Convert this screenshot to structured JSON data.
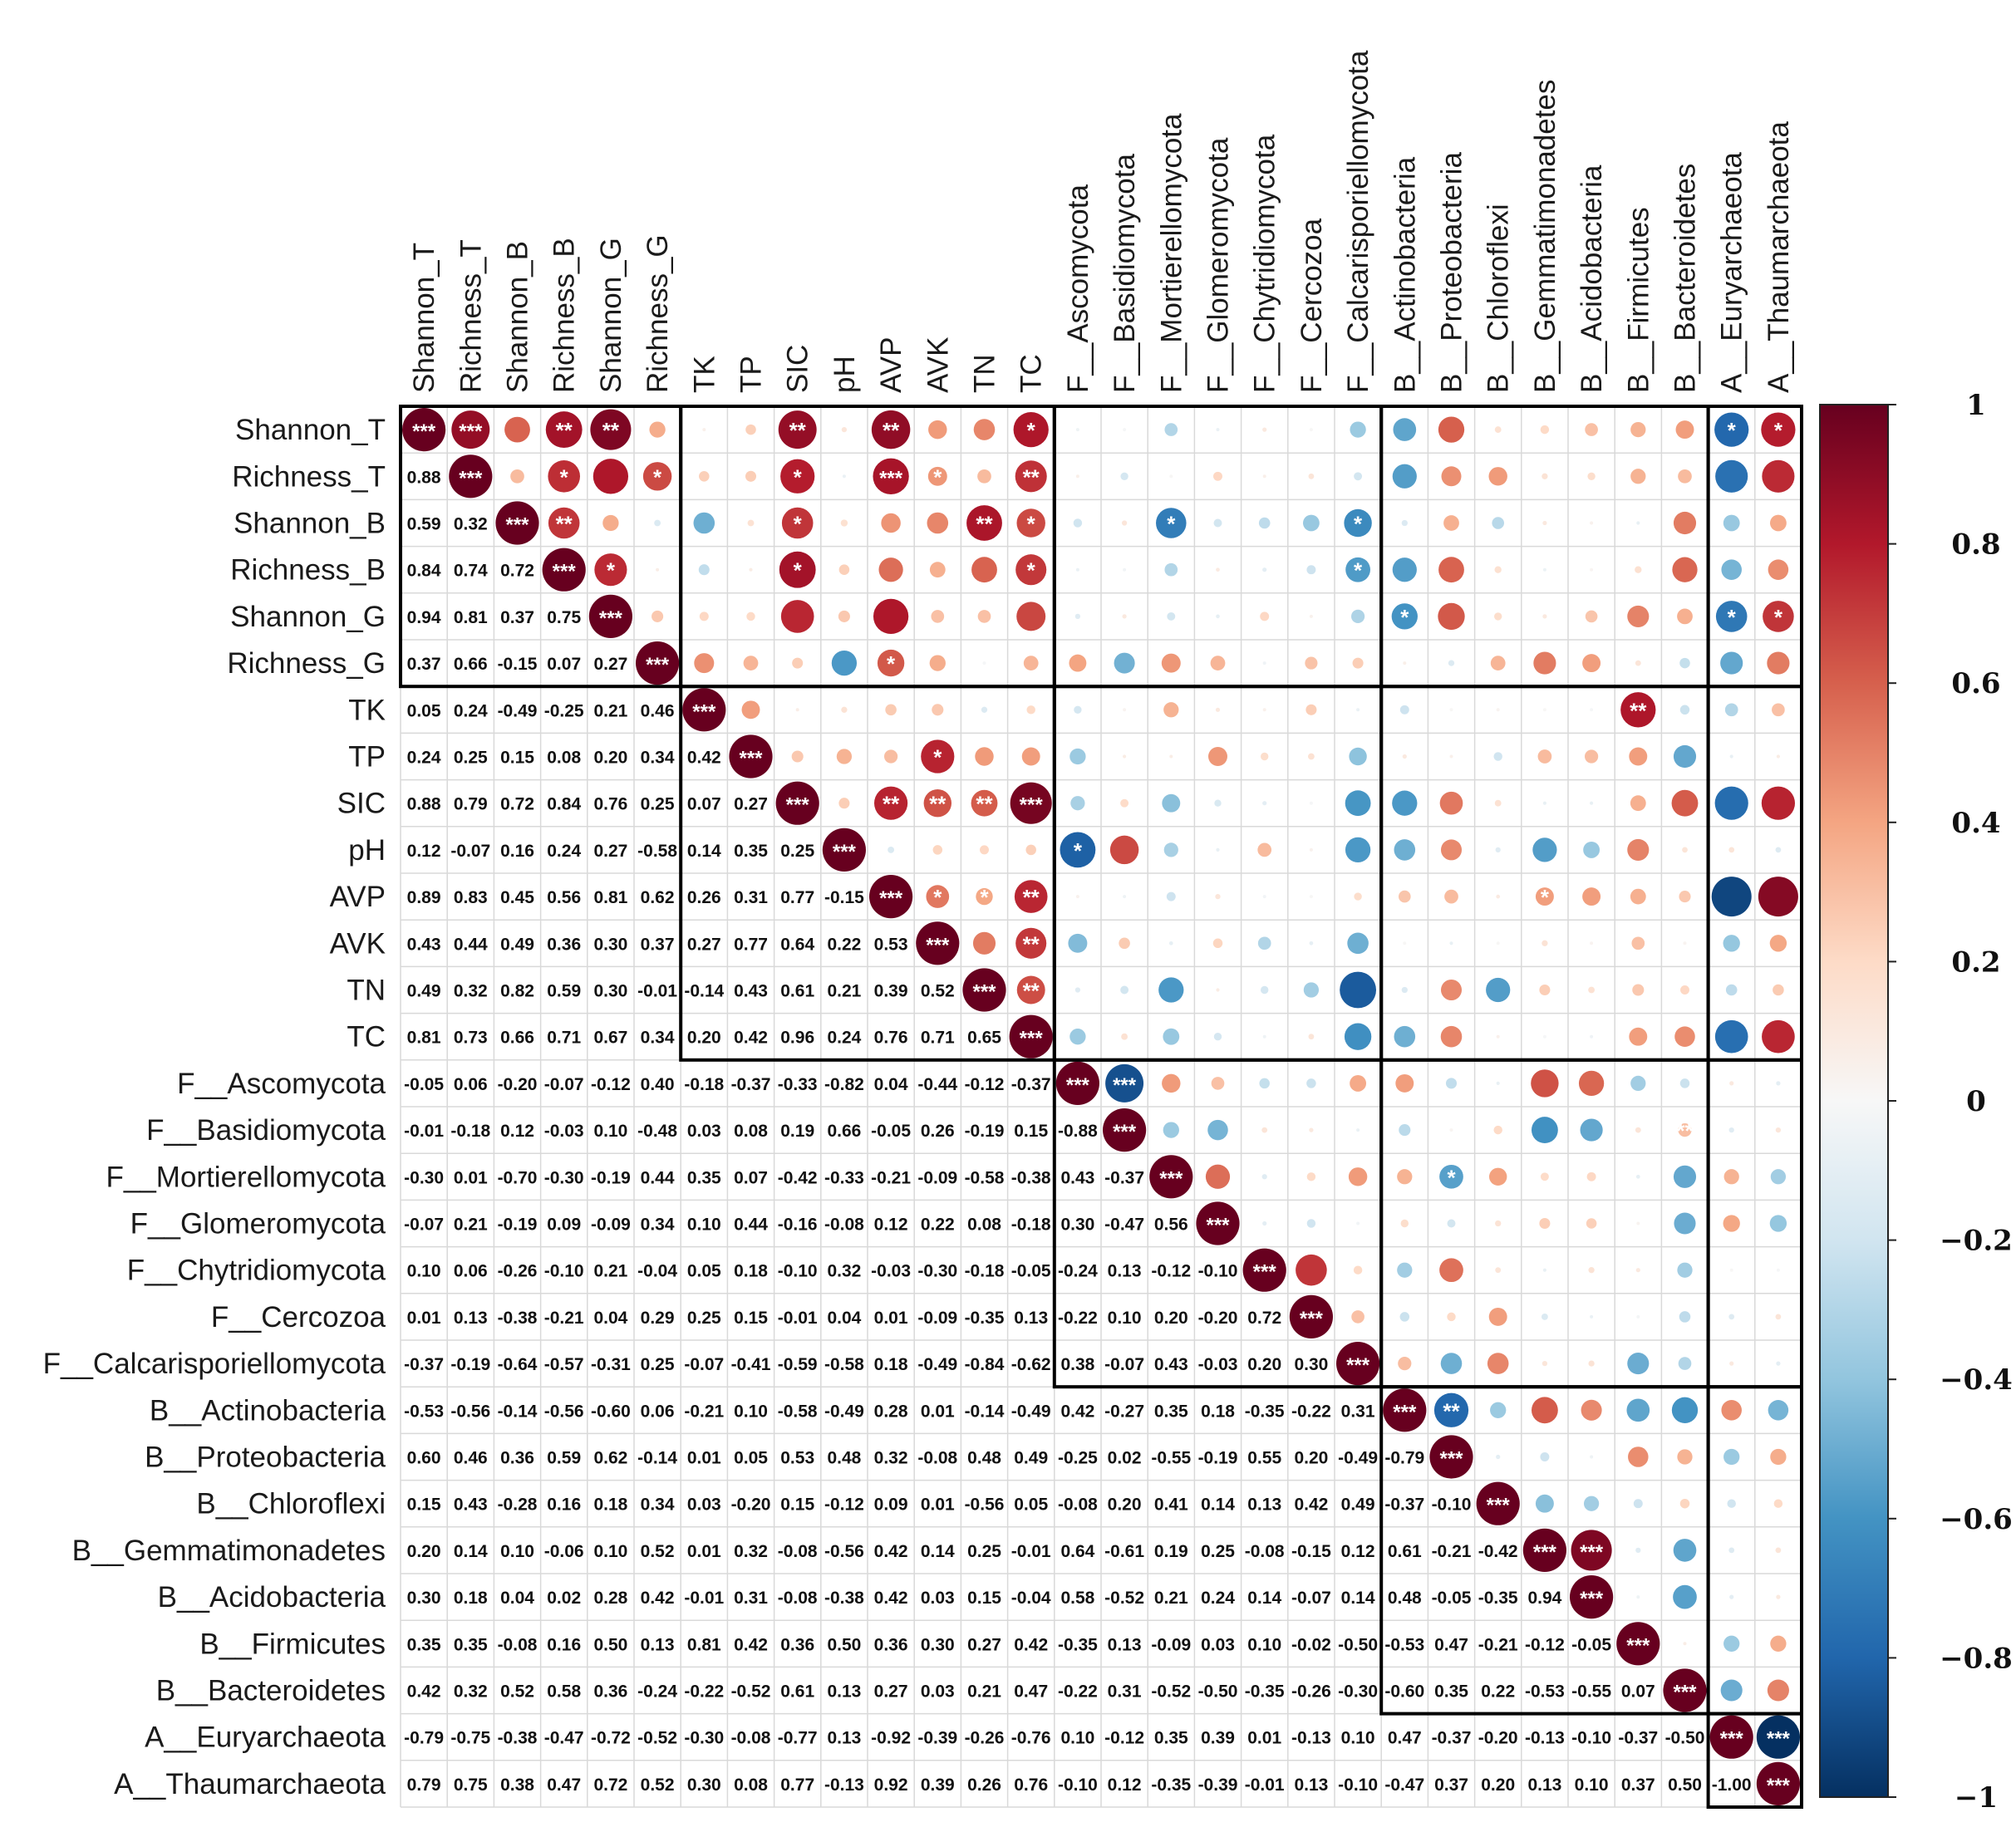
{
  "chart_data": {
    "type": "heatmap",
    "title": "",
    "variables": [
      "Shannon_T",
      "Richness_T",
      "Shannon_B",
      "Richness_B",
      "Shannon_G",
      "Richness_G",
      "TK",
      "TP",
      "SIC",
      "pH",
      "AVP",
      "AVK",
      "TN",
      "TC",
      "F__Ascomycota",
      "F__Basidiomycota",
      "F__Mortierellomycota",
      "F__Glomeromycota",
      "F__Chytridiomycota",
      "F__Cercozoa",
      "F__Calcarisporiellomycota",
      "B__Actinobacteria",
      "B__Proteobacteria",
      "B__Chloroflexi",
      "B__Gemmatimonadetes",
      "B__Acidobacteria",
      "B__Firmicutes",
      "B__Bacteroidetes",
      "A__Euryarchaeota",
      "A__Thaumarchaeota"
    ],
    "lower_values": [
      [],
      [
        "0.88"
      ],
      [
        "0.59",
        "0.32"
      ],
      [
        "0.84",
        "0.74",
        "0.72"
      ],
      [
        "0.94",
        "0.81",
        "0.37",
        "0.75"
      ],
      [
        "0.37",
        "0.66",
        "-0.15",
        "0.07",
        "0.27"
      ],
      [
        "0.05",
        "0.24",
        "-0.49",
        "-0.25",
        "0.21",
        "0.46"
      ],
      [
        "0.24",
        "0.25",
        "0.15",
        "0.08",
        "0.20",
        "0.34",
        "0.42"
      ],
      [
        "0.88",
        "0.79",
        "0.72",
        "0.84",
        "0.76",
        "0.25",
        "0.07",
        "0.27"
      ],
      [
        "0.12",
        "-0.07",
        "0.16",
        "0.24",
        "0.27",
        "-0.58",
        "0.14",
        "0.35",
        "0.25"
      ],
      [
        "0.89",
        "0.83",
        "0.45",
        "0.56",
        "0.81",
        "0.62",
        "0.26",
        "0.31",
        "0.77",
        "-0.15"
      ],
      [
        "0.43",
        "0.44",
        "0.49",
        "0.36",
        "0.30",
        "0.37",
        "0.27",
        "0.77",
        "0.64",
        "0.22",
        "0.53"
      ],
      [
        "0.49",
        "0.32",
        "0.82",
        "0.59",
        "0.30",
        "-0.01",
        "-0.14",
        "0.43",
        "0.61",
        "0.21",
        "0.39",
        "0.52"
      ],
      [
        "0.81",
        "0.73",
        "0.66",
        "0.71",
        "0.67",
        "0.34",
        "0.20",
        "0.42",
        "0.96",
        "0.24",
        "0.76",
        "0.71",
        "0.65"
      ],
      [
        "-0.05",
        "0.06",
        "-0.20",
        "-0.07",
        "-0.12",
        "0.40",
        "-0.18",
        "-0.37",
        "-0.33",
        "-0.82",
        "0.04",
        "-0.44",
        "-0.12",
        "-0.37"
      ],
      [
        "-0.01",
        "-0.18",
        "0.12",
        "-0.03",
        "0.10",
        "-0.48",
        "0.03",
        "0.08",
        "0.19",
        "0.66",
        "-0.05",
        "0.26",
        "-0.19",
        "0.15",
        "-0.88"
      ],
      [
        "-0.30",
        "0.01",
        "-0.70",
        "-0.30",
        "-0.19",
        "0.44",
        "0.35",
        "0.07",
        "-0.42",
        "-0.33",
        "-0.21",
        "-0.09",
        "-0.58",
        "-0.38",
        "0.43",
        "-0.37"
      ],
      [
        "-0.07",
        "0.21",
        "-0.19",
        "0.09",
        "-0.09",
        "0.34",
        "0.10",
        "0.44",
        "-0.16",
        "-0.08",
        "0.12",
        "0.22",
        "0.08",
        "-0.18",
        "0.30",
        "-0.47",
        "0.56"
      ],
      [
        "0.10",
        "0.06",
        "-0.26",
        "-0.10",
        "0.21",
        "-0.04",
        "0.05",
        "0.18",
        "-0.10",
        "0.32",
        "-0.03",
        "-0.30",
        "-0.18",
        "-0.05",
        "-0.24",
        "0.13",
        "-0.12",
        "-0.10"
      ],
      [
        "0.01",
        "0.13",
        "-0.38",
        "-0.21",
        "0.04",
        "0.29",
        "0.25",
        "0.15",
        "-0.01",
        "0.04",
        "0.01",
        "-0.09",
        "-0.35",
        "0.13",
        "-0.22",
        "0.10",
        "0.20",
        "-0.20",
        "0.72"
      ],
      [
        "-0.37",
        "-0.19",
        "-0.64",
        "-0.57",
        "-0.31",
        "0.25",
        "-0.07",
        "-0.41",
        "-0.59",
        "-0.58",
        "0.18",
        "-0.49",
        "-0.84",
        "-0.62",
        "0.38",
        "-0.07",
        "0.43",
        "-0.03",
        "0.20",
        "0.30"
      ],
      [
        "-0.53",
        "-0.56",
        "-0.14",
        "-0.56",
        "-0.60",
        "0.06",
        "-0.21",
        "0.10",
        "-0.58",
        "-0.49",
        "0.28",
        "0.01",
        "-0.14",
        "-0.49",
        "0.42",
        "-0.27",
        "0.35",
        "0.18",
        "-0.35",
        "-0.22",
        "0.31"
      ],
      [
        "0.60",
        "0.46",
        "0.36",
        "0.59",
        "0.62",
        "-0.14",
        "0.01",
        "0.05",
        "0.53",
        "0.48",
        "0.32",
        "-0.08",
        "0.48",
        "0.49",
        "-0.25",
        "0.02",
        "-0.55",
        "-0.19",
        "0.55",
        "0.20",
        "-0.49",
        "-0.79"
      ],
      [
        "0.15",
        "0.43",
        "-0.28",
        "0.16",
        "0.18",
        "0.34",
        "0.03",
        "-0.20",
        "0.15",
        "-0.12",
        "0.09",
        "0.01",
        "-0.56",
        "0.05",
        "-0.08",
        "0.20",
        "0.41",
        "0.14",
        "0.13",
        "0.42",
        "0.49",
        "-0.37",
        "-0.10"
      ],
      [
        "0.20",
        "0.14",
        "0.10",
        "-0.06",
        "0.10",
        "0.52",
        "0.01",
        "0.32",
        "-0.08",
        "-0.56",
        "0.42",
        "0.14",
        "0.25",
        "-0.01",
        "0.64",
        "-0.61",
        "0.19",
        "0.25",
        "-0.08",
        "-0.15",
        "0.12",
        "0.61",
        "-0.21",
        "-0.42"
      ],
      [
        "0.30",
        "0.18",
        "0.04",
        "0.02",
        "0.28",
        "0.42",
        "-0.01",
        "0.31",
        "-0.08",
        "-0.38",
        "0.42",
        "0.03",
        "0.15",
        "-0.04",
        "0.58",
        "-0.52",
        "0.21",
        "0.24",
        "0.14",
        "-0.07",
        "0.14",
        "0.48",
        "-0.05",
        "-0.35",
        "0.94"
      ],
      [
        "0.35",
        "0.35",
        "-0.08",
        "0.16",
        "0.50",
        "0.13",
        "0.81",
        "0.42",
        "0.36",
        "0.50",
        "0.36",
        "0.30",
        "0.27",
        "0.42",
        "-0.35",
        "0.13",
        "-0.09",
        "0.03",
        "0.10",
        "-0.02",
        "-0.50",
        "-0.53",
        "0.47",
        "-0.21",
        "-0.12",
        "-0.05"
      ],
      [
        "0.42",
        "0.32",
        "0.52",
        "0.58",
        "0.36",
        "-0.24",
        "-0.22",
        "-0.52",
        "0.61",
        "0.13",
        "0.27",
        "0.03",
        "0.21",
        "0.47",
        "-0.22",
        "0.31",
        "-0.52",
        "-0.50",
        "-0.35",
        "-0.26",
        "-0.30",
        "-0.60",
        "0.35",
        "0.22",
        "-0.53",
        "-0.55",
        "0.07"
      ],
      [
        "-0.79",
        "-0.75",
        "-0.38",
        "-0.47",
        "-0.72",
        "-0.52",
        "-0.30",
        "-0.08",
        "-0.77",
        "0.13",
        "-0.92",
        "-0.39",
        "-0.26",
        "-0.76",
        "0.10",
        "-0.12",
        "0.35",
        "0.39",
        "0.01",
        "-0.13",
        "0.10",
        "0.47",
        "-0.37",
        "-0.20",
        "-0.13",
        "-0.10",
        "-0.37",
        "-0.50"
      ],
      [
        "0.79",
        "0.75",
        "0.38",
        "0.47",
        "0.72",
        "0.52",
        "0.30",
        "0.08",
        "0.77",
        "-0.13",
        "0.92",
        "0.39",
        "0.26",
        "0.76",
        "-0.10",
        "0.12",
        "-0.35",
        "-0.39",
        "-0.01",
        "0.13",
        "-0.10",
        "-0.47",
        "0.37",
        "0.20",
        "0.13",
        "0.10",
        "0.37",
        "0.50",
        "-1.00"
      ]
    ],
    "significance_stars": [
      "0,0:***",
      "1,1:***",
      "2,2:***",
      "3,3:***",
      "4,4:***",
      "5,5:***",
      "6,6:***",
      "7,7:***",
      "8,8:***",
      "9,9:***",
      "10,10:***",
      "11,11:***",
      "12,12:***",
      "13,13:***",
      "14,14:***",
      "15,15:***",
      "16,16:***",
      "17,17:***",
      "18,18:***",
      "19,19:***",
      "20,20:***",
      "21,21:***",
      "22,22:***",
      "23,23:***",
      "24,24:***",
      "25,25:***",
      "26,26:***",
      "27,27:***",
      "28,28:***",
      "29,29:***",
      "0,1:***",
      "0,3:**",
      "0,4:**",
      "0,8:**",
      "0,10:**",
      "0,13:*",
      "0,28:*",
      "0,29:*",
      "1,3:*",
      "1,5:*",
      "1,8:*",
      "1,10:***",
      "1,11:*",
      "1,13:**",
      "2,3:**",
      "2,8:*",
      "2,12:**",
      "2,13:*",
      "2,16:*",
      "2,20:*",
      "3,4:*",
      "3,8:*",
      "3,13:*",
      "3,20:*",
      "4,21:*",
      "4,28:*",
      "4,29:*",
      "5,10:*",
      "6,26:**",
      "7,11:*",
      "8,10:**",
      "8,11:**",
      "8,12:**",
      "8,13:***",
      "9,14:*",
      "10,11:*",
      "10,12:*",
      "10,13:**",
      "10,24:*",
      "11,13:**",
      "12,13:**",
      "14,15:***",
      "15,27:**",
      "16,22:*",
      "21,22:**",
      "24,25:***",
      "28,29:***"
    ],
    "colorbar": {
      "min": -1,
      "max": 1,
      "ticks": [
        "1",
        "0.8",
        "0.6",
        "0.4",
        "0.2",
        "0",
        "−0.2",
        "−0.4",
        "−0.6",
        "−0.8",
        "−1"
      ]
    },
    "colors": {
      "neg": "#053061",
      "neg_mid": "#2166ac",
      "neg_light": "#4393c3",
      "pos_light": "#f4a582",
      "pos_mid": "#d6604d",
      "pos": "#67001f",
      "grid": "#d9d9d9",
      "box": "#000000"
    }
  }
}
